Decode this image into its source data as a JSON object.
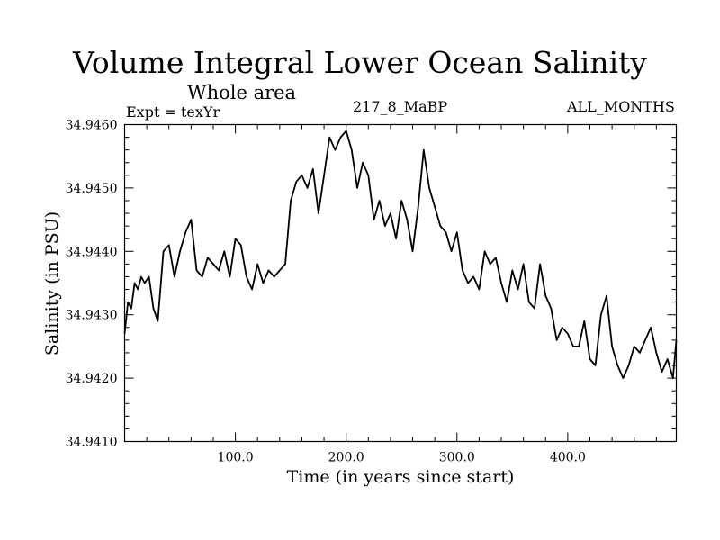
{
  "chart_data": {
    "type": "line",
    "title": "Volume Integral Lower Ocean Salinity",
    "subtitle": "Whole area",
    "experiment_label": "Expt = texYr",
    "run_label": "217_8_MaBP",
    "months_label": "ALL_MONTHS",
    "xlabel": "Time (in years since start)",
    "ylabel": "Salinity (in PSU)",
    "xlim": [
      0,
      498
    ],
    "ylim": [
      34.941,
      34.946
    ],
    "xticks": [
      100,
      200,
      300,
      400
    ],
    "xtick_labels": [
      "100.0",
      "200.0",
      "300.0",
      "400.0"
    ],
    "yticks": [
      34.941,
      34.942,
      34.943,
      34.944,
      34.945,
      34.946
    ],
    "ytick_labels": [
      "34.9410",
      "34.9420",
      "34.9430",
      "34.9440",
      "34.9450",
      "34.9460"
    ],
    "grid": false,
    "line_color": "#000000",
    "series": [
      {
        "x": [
          0,
          3,
          6,
          9,
          12,
          15,
          18,
          22,
          26,
          30,
          35,
          40,
          45,
          50,
          55,
          60,
          65,
          70,
          75,
          80,
          85,
          90,
          95,
          100,
          105,
          110,
          115,
          120,
          125,
          130,
          135,
          140,
          145,
          150,
          155,
          160,
          165,
          170,
          175,
          180,
          185,
          190,
          195,
          200,
          205,
          210,
          215,
          220,
          225,
          230,
          235,
          240,
          245,
          250,
          255,
          260,
          265,
          270,
          275,
          280,
          285,
          290,
          295,
          300,
          305,
          310,
          315,
          320,
          325,
          330,
          335,
          340,
          345,
          350,
          355,
          360,
          365,
          370,
          375,
          380,
          385,
          390,
          395,
          400,
          405,
          410,
          415,
          420,
          425,
          430,
          435,
          440,
          445,
          450,
          455,
          460,
          465,
          470,
          475,
          480,
          485,
          490,
          495,
          498
        ],
        "y": [
          34.9427,
          34.9432,
          34.9431,
          34.9435,
          34.9434,
          34.9436,
          34.9435,
          34.9436,
          34.9431,
          34.9429,
          34.944,
          34.9441,
          34.9436,
          34.944,
          34.9443,
          34.9445,
          34.9437,
          34.9436,
          34.9439,
          34.9438,
          34.9437,
          34.944,
          34.9436,
          34.9442,
          34.9441,
          34.9436,
          34.9434,
          34.9438,
          34.9435,
          34.9437,
          34.9436,
          34.9437,
          34.9438,
          34.9448,
          34.9451,
          34.9452,
          34.945,
          34.9453,
          34.9446,
          34.9452,
          34.9458,
          34.9456,
          34.9458,
          34.9459,
          34.9456,
          34.945,
          34.9454,
          34.9452,
          34.9445,
          34.9448,
          34.9444,
          34.9446,
          34.9442,
          34.9448,
          34.9445,
          34.944,
          34.9447,
          34.9456,
          34.945,
          34.9447,
          34.9444,
          34.9443,
          34.944,
          34.9443,
          34.9437,
          34.9435,
          34.9436,
          34.9434,
          34.944,
          34.9438,
          34.9439,
          34.9435,
          34.9432,
          34.9437,
          34.9434,
          34.9438,
          34.9432,
          34.9431,
          34.9438,
          34.9433,
          34.9431,
          34.9426,
          34.9428,
          34.9427,
          34.9425,
          34.9425,
          34.9429,
          34.9423,
          34.9422,
          34.943,
          34.9433,
          34.9425,
          34.9422,
          34.942,
          34.9422,
          34.9425,
          34.9424,
          34.9426,
          34.9428,
          34.9424,
          34.9421,
          34.9423,
          34.942,
          34.9426
        ]
      }
    ]
  }
}
